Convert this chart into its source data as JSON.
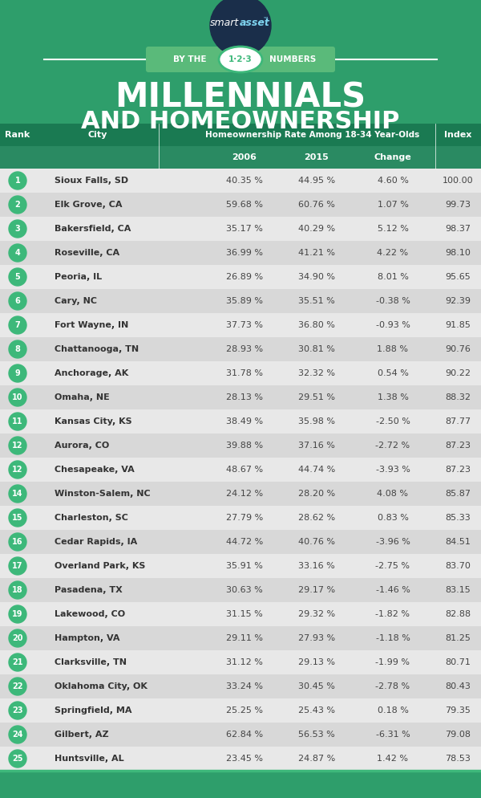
{
  "bg_color": "#2e9e6b",
  "header_bg": "#1a7a52",
  "header_bg2": "#2a8a62",
  "table_bg_light": "#e8e8e8",
  "table_bg_dark": "#d8d8d8",
  "green_circle": "#3db87a",
  "banner_color": "#5aba7a",
  "navy": "#1a2e4a",
  "white": "#ffffff",
  "title_line1": "MILLENNIALS",
  "title_line2": "AND HOMEOWNERSHIP",
  "col_header_main": "Homeownership Rate Among 18-34 Year-Olds",
  "col_rank": "Rank",
  "col_city": "City",
  "col_2006": "2006",
  "col_2015": "2015",
  "col_change": "Change",
  "col_index": "Index",
  "rows": [
    [
      1,
      "Sioux Falls, SD",
      "40.35 %",
      "44.95 %",
      "4.60 %",
      "100.00"
    ],
    [
      2,
      "Elk Grove, CA",
      "59.68 %",
      "60.76 %",
      "1.07 %",
      "99.73"
    ],
    [
      3,
      "Bakersfield, CA",
      "35.17 %",
      "40.29 %",
      "5.12 %",
      "98.37"
    ],
    [
      4,
      "Roseville, CA",
      "36.99 %",
      "41.21 %",
      "4.22 %",
      "98.10"
    ],
    [
      5,
      "Peoria, IL",
      "26.89 %",
      "34.90 %",
      "8.01 %",
      "95.65"
    ],
    [
      6,
      "Cary, NC",
      "35.89 %",
      "35.51 %",
      "-0.38 %",
      "92.39"
    ],
    [
      7,
      "Fort Wayne, IN",
      "37.73 %",
      "36.80 %",
      "-0.93 %",
      "91.85"
    ],
    [
      8,
      "Chattanooga, TN",
      "28.93 %",
      "30.81 %",
      "1.88 %",
      "90.76"
    ],
    [
      9,
      "Anchorage, AK",
      "31.78 %",
      "32.32 %",
      "0.54 %",
      "90.22"
    ],
    [
      10,
      "Omaha, NE",
      "28.13 %",
      "29.51 %",
      "1.38 %",
      "88.32"
    ],
    [
      11,
      "Kansas City, KS",
      "38.49 %",
      "35.98 %",
      "-2.50 %",
      "87.77"
    ],
    [
      12,
      "Aurora, CO",
      "39.88 %",
      "37.16 %",
      "-2.72 %",
      "87.23"
    ],
    [
      12,
      "Chesapeake, VA",
      "48.67 %",
      "44.74 %",
      "-3.93 %",
      "87.23"
    ],
    [
      14,
      "Winston-Salem, NC",
      "24.12 %",
      "28.20 %",
      "4.08 %",
      "85.87"
    ],
    [
      15,
      "Charleston, SC",
      "27.79 %",
      "28.62 %",
      "0.83 %",
      "85.33"
    ],
    [
      16,
      "Cedar Rapids, IA",
      "44.72 %",
      "40.76 %",
      "-3.96 %",
      "84.51"
    ],
    [
      17,
      "Overland Park, KS",
      "35.91 %",
      "33.16 %",
      "-2.75 %",
      "83.70"
    ],
    [
      18,
      "Pasadena, TX",
      "30.63 %",
      "29.17 %",
      "-1.46 %",
      "83.15"
    ],
    [
      19,
      "Lakewood, CO",
      "31.15 %",
      "29.32 %",
      "-1.82 %",
      "82.88"
    ],
    [
      20,
      "Hampton, VA",
      "29.11 %",
      "27.93 %",
      "-1.18 %",
      "81.25"
    ],
    [
      21,
      "Clarksville, TN",
      "31.12 %",
      "29.13 %",
      "-1.99 %",
      "80.71"
    ],
    [
      22,
      "Oklahoma City, OK",
      "33.24 %",
      "30.45 %",
      "-2.78 %",
      "80.43"
    ],
    [
      23,
      "Springfield, MA",
      "25.25 %",
      "25.43 %",
      "0.18 %",
      "79.35"
    ],
    [
      24,
      "Gilbert, AZ",
      "62.84 %",
      "56.53 %",
      "-6.31 %",
      "79.08"
    ],
    [
      25,
      "Huntsville, AL",
      "23.45 %",
      "24.87 %",
      "1.42 %",
      "78.53"
    ]
  ]
}
